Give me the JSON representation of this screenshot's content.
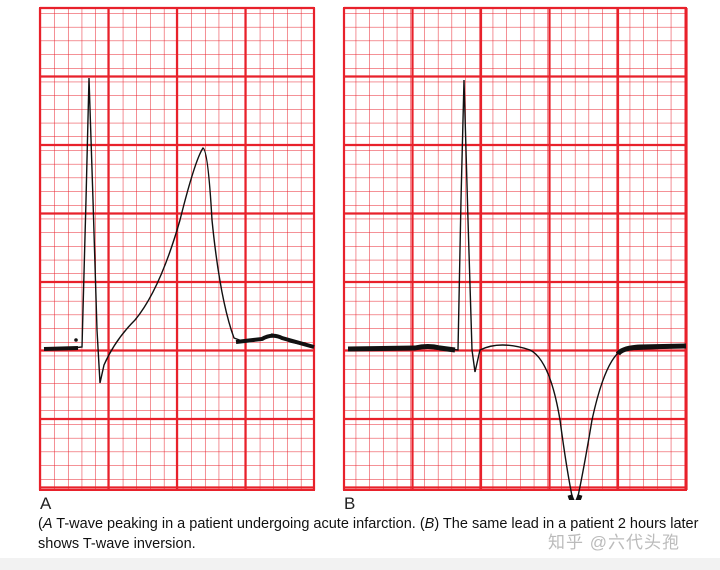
{
  "panels": [
    {
      "label": "A",
      "description_wave": "T-wave peaking"
    },
    {
      "label": "B",
      "description_wave": "T-wave inversion"
    }
  ],
  "caption": {
    "a_marker": "A",
    "a_text": " T-wave peaking in a patient undergoing acute infarction. (",
    "b_marker": "B",
    "b_text": ") The same lead in a patient 2 hours later shows T-wave inversion."
  },
  "watermark": "知乎 @六代头孢",
  "colors": {
    "grid": "#e8212b",
    "trace": "#111111",
    "background": "#ffffff"
  }
}
